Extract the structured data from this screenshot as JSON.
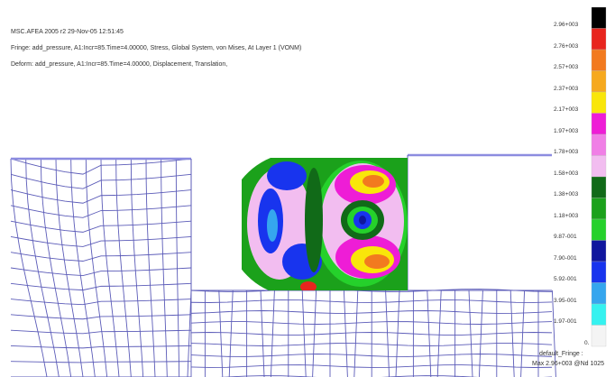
{
  "header": {
    "line1": "MSC.AFEA 2005 r2 29-Nov-05 12:51:45",
    "line2": "Fringe: add_pressure, A1:Incr=85.Time=4.00000, Stress, Global System, von Mises, At Layer 1 (VONM)",
    "line3": "Deform: add_pressure, A1:Incr=85.Time=4.00000, Displacement, Translation,"
  },
  "legend": {
    "items": [
      {
        "label": "2.96+003",
        "color": "#000000"
      },
      {
        "label": "2.76+003",
        "color": "#e8251e"
      },
      {
        "label": "2.57+003",
        "color": "#f27a1f"
      },
      {
        "label": "2.37+003",
        "color": "#f6a91e"
      },
      {
        "label": "2.17+003",
        "color": "#f9e60a"
      },
      {
        "label": "1.97+003",
        "color": "#ee1dd6"
      },
      {
        "label": "1.78+003",
        "color": "#f07fe6"
      },
      {
        "label": "1.58+003",
        "color": "#f2bdf0"
      },
      {
        "label": "1.38+003",
        "color": "#116a18"
      },
      {
        "label": "1.18+003",
        "color": "#1ba11b"
      },
      {
        "label": "9.87-001",
        "color": "#25d12b"
      },
      {
        "label": "7.90-001",
        "color": "#10169e"
      },
      {
        "label": "5.92-001",
        "color": "#1834ee"
      },
      {
        "label": "3.95-001",
        "color": "#35a6ee"
      },
      {
        "label": "1.97-001",
        "color": "#35f2f0"
      },
      {
        "label": "0.",
        "color": "#f4f4f4"
      }
    ]
  },
  "footer": {
    "line1": "default_Fringe :",
    "line2": "Max 2.96+003 @Nd 1025"
  }
}
